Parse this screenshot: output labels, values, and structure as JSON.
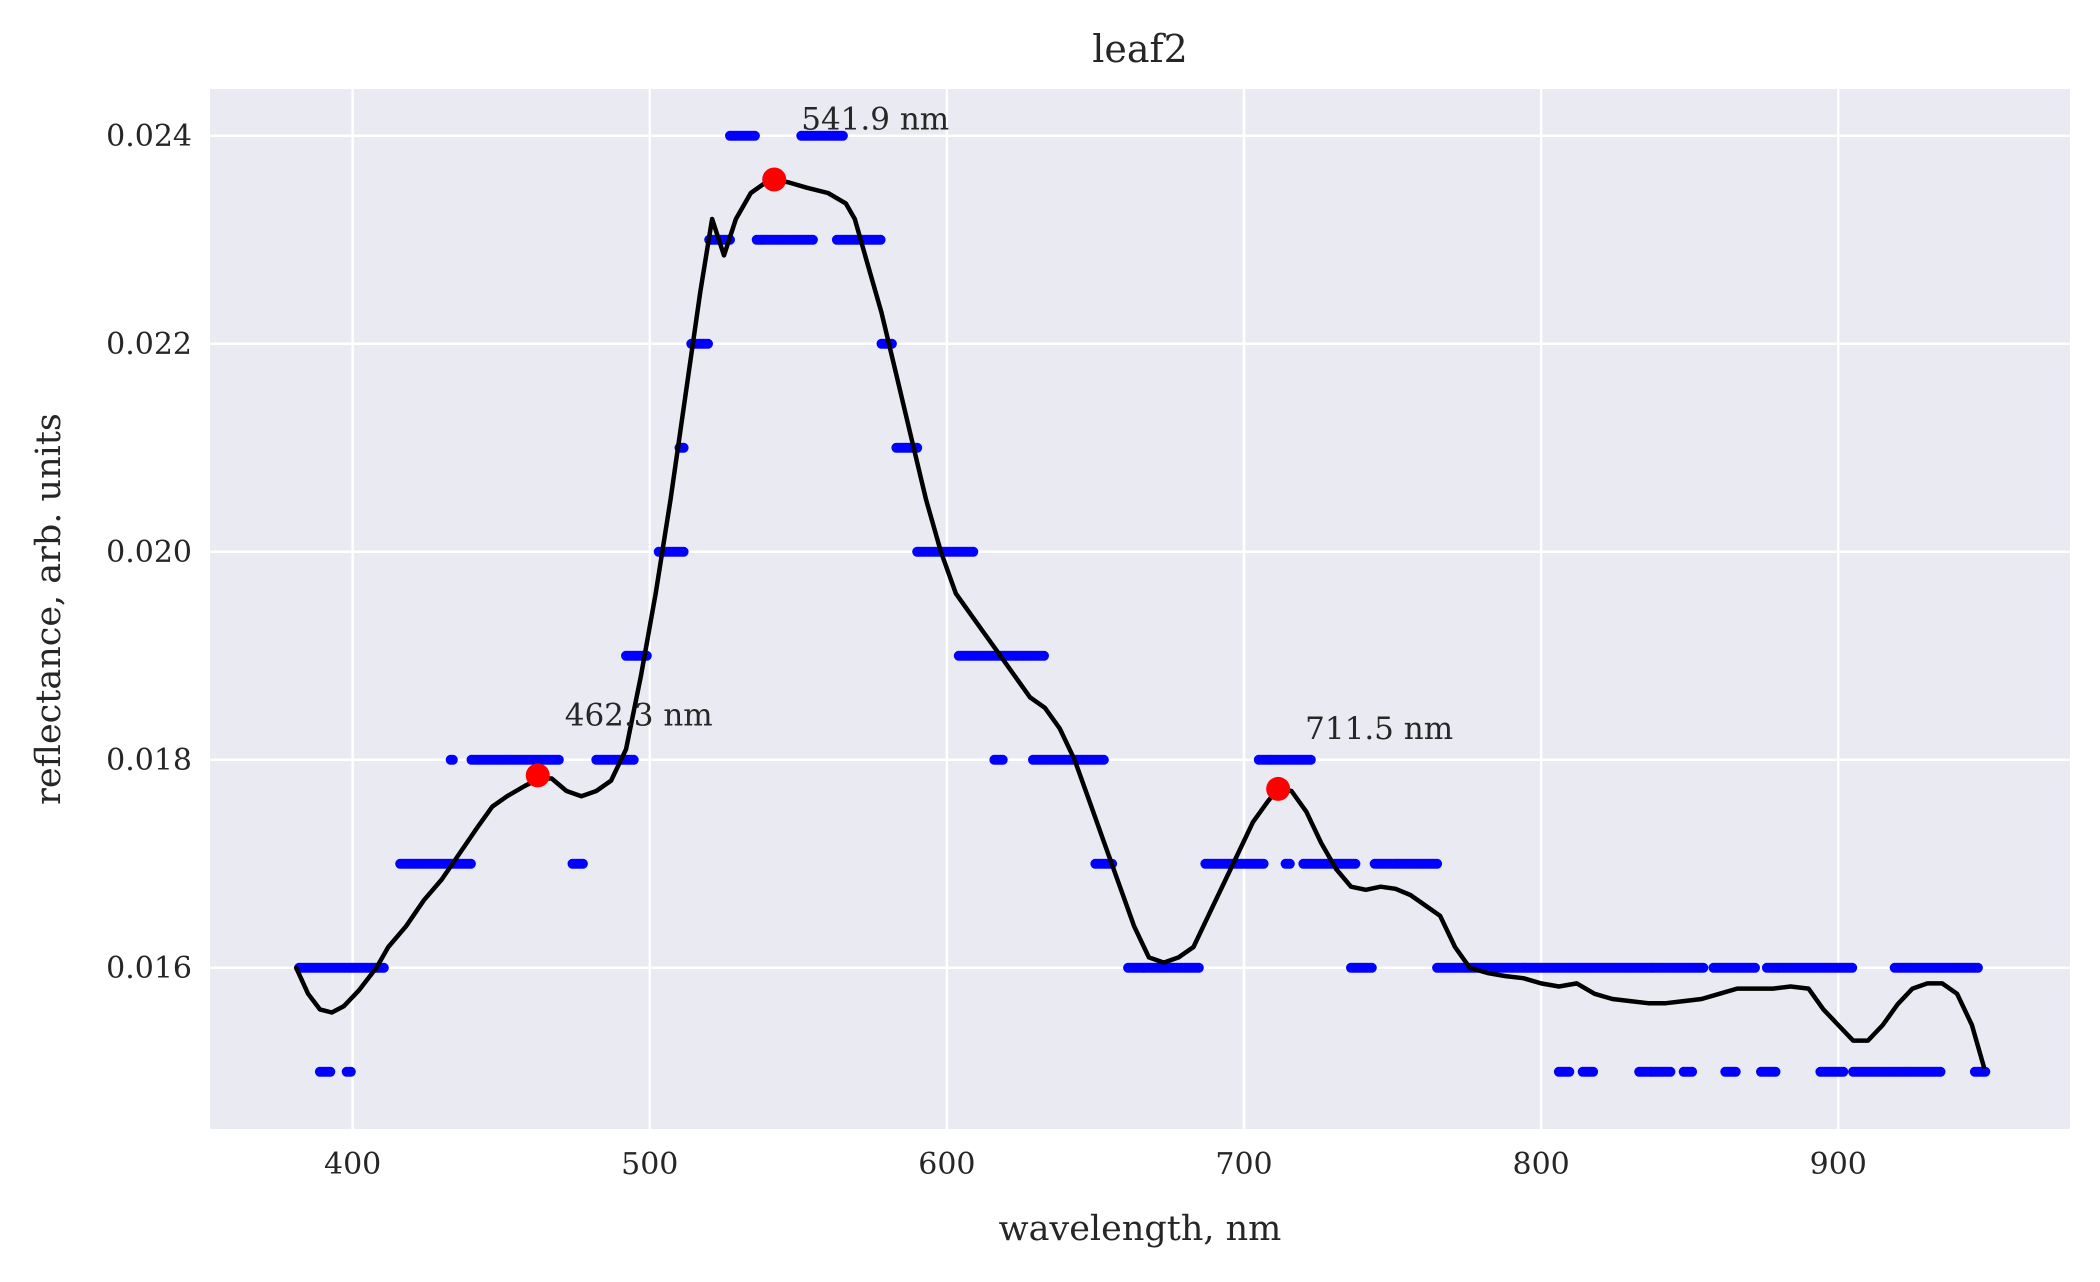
{
  "chart_data": {
    "type": "scatter",
    "title": "leaf2",
    "xlabel": "wavelength, nm",
    "ylabel": "reflectance, arb. units",
    "xlim": [
      352,
      978
    ],
    "ylim": [
      0.01445,
      0.02445
    ],
    "grid": true,
    "background_color": "#eaeaf2",
    "x_ticks": [
      400,
      500,
      600,
      700,
      800,
      900
    ],
    "x_tick_labels": [
      "400",
      "500",
      "600",
      "700",
      "800",
      "900"
    ],
    "y_ticks": [
      0.016,
      0.018,
      0.02,
      0.022,
      0.024
    ],
    "y_tick_labels": [
      "0.016",
      "0.018",
      "0.020",
      "0.022",
      "0.024"
    ],
    "series": [
      {
        "kind": "raw_points",
        "color": "#0000ff",
        "segments": [
          [
            382,
            400,
            0.016
          ],
          [
            400,
            411,
            0.016
          ],
          [
            389,
            393,
            0.015
          ],
          [
            398,
            400,
            0.015
          ],
          [
            416,
            440,
            0.017
          ],
          [
            433,
            434,
            0.018
          ],
          [
            440,
            470,
            0.018
          ],
          [
            482,
            495,
            0.018
          ],
          [
            474,
            478,
            0.017
          ],
          [
            492,
            499,
            0.019
          ],
          [
            503,
            512,
            0.02
          ],
          [
            510,
            512,
            0.021
          ],
          [
            514,
            520,
            0.022
          ],
          [
            520,
            527,
            0.023
          ],
          [
            527,
            536,
            0.024
          ],
          [
            536,
            555,
            0.023
          ],
          [
            551,
            565,
            0.024
          ],
          [
            563,
            578,
            0.023
          ],
          [
            578,
            582,
            0.022
          ],
          [
            583,
            590,
            0.021
          ],
          [
            590,
            609,
            0.02
          ],
          [
            604,
            633,
            0.019
          ],
          [
            616,
            619,
            0.018
          ],
          [
            629,
            653,
            0.018
          ],
          [
            650,
            656,
            0.017
          ],
          [
            661,
            685,
            0.016
          ],
          [
            687,
            707,
            0.017
          ],
          [
            705,
            723,
            0.018
          ],
          [
            714,
            716,
            0.017
          ],
          [
            720,
            738,
            0.017
          ],
          [
            736,
            743,
            0.016
          ],
          [
            744,
            765,
            0.017
          ],
          [
            765,
            855,
            0.016
          ],
          [
            806,
            810,
            0.015
          ],
          [
            814,
            818,
            0.015
          ],
          [
            833,
            844,
            0.015
          ],
          [
            848,
            851,
            0.015
          ],
          [
            862,
            866,
            0.015
          ],
          [
            874,
            879,
            0.015
          ],
          [
            858,
            872,
            0.016
          ],
          [
            876,
            905,
            0.016
          ],
          [
            894,
            902,
            0.015
          ],
          [
            905,
            935,
            0.015
          ],
          [
            919,
            947,
            0.016
          ],
          [
            946,
            950,
            0.015
          ]
        ]
      },
      {
        "kind": "smoothed_line",
        "color": "#000000",
        "points": [
          [
            381,
            0.016
          ],
          [
            385,
            0.01575
          ],
          [
            389,
            0.0156
          ],
          [
            393,
            0.01557
          ],
          [
            397,
            0.01563
          ],
          [
            402,
            0.01578
          ],
          [
            408,
            0.016
          ],
          [
            412,
            0.0162
          ],
          [
            418,
            0.0164
          ],
          [
            424,
            0.01665
          ],
          [
            430,
            0.01685
          ],
          [
            436,
            0.0171
          ],
          [
            442,
            0.01735
          ],
          [
            447,
            0.01755
          ],
          [
            452,
            0.01765
          ],
          [
            458,
            0.01775
          ],
          [
            463,
            0.01782
          ],
          [
            467,
            0.01782
          ],
          [
            472,
            0.0177
          ],
          [
            477,
            0.01765
          ],
          [
            482,
            0.0177
          ],
          [
            487,
            0.0178
          ],
          [
            492,
            0.0181
          ],
          [
            497,
            0.0188
          ],
          [
            502,
            0.0196
          ],
          [
            507,
            0.0205
          ],
          [
            512,
            0.0215
          ],
          [
            517,
            0.0225
          ],
          [
            521,
            0.0232
          ],
          [
            525,
            0.02285
          ],
          [
            529,
            0.0232
          ],
          [
            534,
            0.02345
          ],
          [
            539,
            0.02355
          ],
          [
            542,
            0.02358
          ],
          [
            547,
            0.02355
          ],
          [
            553,
            0.0235
          ],
          [
            560,
            0.02345
          ],
          [
            566,
            0.02335
          ],
          [
            569,
            0.0232
          ],
          [
            573,
            0.0228
          ],
          [
            578,
            0.0223
          ],
          [
            583,
            0.0217
          ],
          [
            588,
            0.0211
          ],
          [
            593,
            0.0205
          ],
          [
            598,
            0.02
          ],
          [
            603,
            0.0196
          ],
          [
            608,
            0.0194
          ],
          [
            613,
            0.0192
          ],
          [
            618,
            0.019
          ],
          [
            623,
            0.0188
          ],
          [
            628,
            0.0186
          ],
          [
            633,
            0.0185
          ],
          [
            638,
            0.0183
          ],
          [
            643,
            0.018
          ],
          [
            648,
            0.0176
          ],
          [
            653,
            0.0172
          ],
          [
            658,
            0.0168
          ],
          [
            663,
            0.0164
          ],
          [
            668,
            0.0161
          ],
          [
            673,
            0.01605
          ],
          [
            678,
            0.0161
          ],
          [
            683,
            0.0162
          ],
          [
            688,
            0.0165
          ],
          [
            693,
            0.0168
          ],
          [
            698,
            0.0171
          ],
          [
            703,
            0.0174
          ],
          [
            708,
            0.0176
          ],
          [
            711.5,
            0.01772
          ],
          [
            716,
            0.0177
          ],
          [
            721,
            0.0175
          ],
          [
            726,
            0.0172
          ],
          [
            731,
            0.01695
          ],
          [
            736,
            0.01678
          ],
          [
            741,
            0.01675
          ],
          [
            746,
            0.01678
          ],
          [
            751,
            0.01676
          ],
          [
            756,
            0.0167
          ],
          [
            761,
            0.0166
          ],
          [
            766,
            0.0165
          ],
          [
            771,
            0.0162
          ],
          [
            776,
            0.016
          ],
          [
            782,
            0.01595
          ],
          [
            788,
            0.01592
          ],
          [
            794,
            0.0159
          ],
          [
            800,
            0.01585
          ],
          [
            806,
            0.01582
          ],
          [
            812,
            0.01585
          ],
          [
            818,
            0.01575
          ],
          [
            824,
            0.0157
          ],
          [
            830,
            0.01568
          ],
          [
            836,
            0.01566
          ],
          [
            842,
            0.01566
          ],
          [
            848,
            0.01568
          ],
          [
            854,
            0.0157
          ],
          [
            860,
            0.01575
          ],
          [
            866,
            0.0158
          ],
          [
            872,
            0.0158
          ],
          [
            878,
            0.0158
          ],
          [
            884,
            0.01582
          ],
          [
            890,
            0.0158
          ],
          [
            895,
            0.0156
          ],
          [
            900,
            0.01545
          ],
          [
            905,
            0.0153
          ],
          [
            910,
            0.0153
          ],
          [
            915,
            0.01545
          ],
          [
            920,
            0.01565
          ],
          [
            925,
            0.0158
          ],
          [
            930,
            0.01585
          ],
          [
            935,
            0.01585
          ],
          [
            940,
            0.01575
          ],
          [
            945,
            0.01545
          ],
          [
            949,
            0.01505
          ]
        ]
      },
      {
        "kind": "peaks",
        "color": "#ff0000",
        "points": [
          {
            "x": 462.3,
            "y": 0.01785,
            "label": "462.3 nm"
          },
          {
            "x": 541.9,
            "y": 0.02358,
            "label": "541.9 nm"
          },
          {
            "x": 711.5,
            "y": 0.01772,
            "label": "711.5 nm"
          }
        ]
      }
    ]
  }
}
